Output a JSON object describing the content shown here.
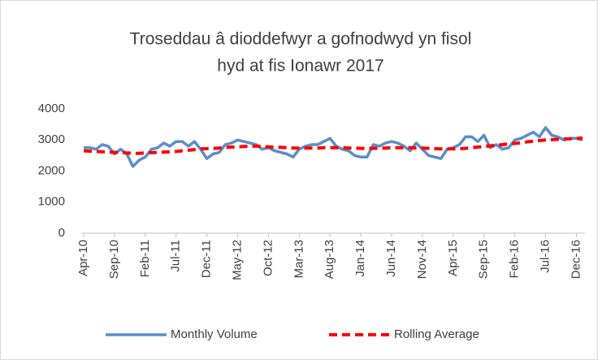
{
  "chart_data": {
    "type": "line",
    "title": [
      "Troseddau â dioddefwyr a gofnodwyd yn fisol",
      "hyd at fis Ionawr 2017"
    ],
    "categories": [
      "Apr-10",
      null,
      null,
      null,
      null,
      "Sep-10",
      null,
      null,
      null,
      null,
      "Feb-11",
      null,
      null,
      null,
      null,
      "Jul-11",
      null,
      null,
      null,
      null,
      "Dec-11",
      null,
      null,
      null,
      null,
      "May-12",
      null,
      null,
      null,
      null,
      "Oct-12",
      null,
      null,
      null,
      null,
      "Mar-13",
      null,
      null,
      null,
      null,
      "Aug-13",
      null,
      null,
      null,
      null,
      "Jan-14",
      null,
      null,
      null,
      null,
      "Jun-14",
      null,
      null,
      null,
      null,
      "Nov-14",
      null,
      null,
      null,
      null,
      "Apr-15",
      null,
      null,
      null,
      null,
      "Sep-15",
      null,
      null,
      null,
      null,
      "Feb-16",
      null,
      null,
      null,
      null,
      "Jul-16",
      null,
      null,
      null,
      null,
      "Dec-16",
      null
    ],
    "series": [
      {
        "name": "Monthly Volume",
        "color": "#5b8ec9",
        "dash": false,
        "values": [
          2750,
          2750,
          2700,
          2850,
          2800,
          2550,
          2700,
          2550,
          2150,
          2350,
          2450,
          2700,
          2750,
          2900,
          2800,
          2950,
          2950,
          2800,
          2950,
          2700,
          2400,
          2550,
          2600,
          2850,
          2900,
          3000,
          2950,
          2900,
          2850,
          2700,
          2750,
          2650,
          2600,
          2550,
          2450,
          2700,
          2800,
          2850,
          2850,
          2950,
          3050,
          2800,
          2700,
          2650,
          2500,
          2450,
          2450,
          2850,
          2800,
          2900,
          2950,
          2900,
          2800,
          2650,
          2900,
          2700,
          2500,
          2450,
          2400,
          2700,
          2750,
          2850,
          3100,
          3100,
          2950,
          3150,
          2750,
          2850,
          2700,
          2750,
          3000,
          3050,
          3150,
          3250,
          3100,
          3400,
          3150,
          3100,
          3000,
          3050,
          3050,
          3000
        ]
      },
      {
        "name": "Rolling Average",
        "color": "#ff0000",
        "dash": true,
        "values": [
          2650,
          2640,
          2630,
          2620,
          2610,
          2600,
          2590,
          2580,
          2570,
          2570,
          2580,
          2590,
          2600,
          2610,
          2620,
          2630,
          2650,
          2670,
          2690,
          2710,
          2720,
          2730,
          2740,
          2760,
          2770,
          2780,
          2790,
          2800,
          2800,
          2790,
          2780,
          2770,
          2760,
          2750,
          2740,
          2740,
          2740,
          2740,
          2740,
          2750,
          2750,
          2750,
          2750,
          2740,
          2740,
          2730,
          2730,
          2730,
          2740,
          2740,
          2750,
          2750,
          2750,
          2750,
          2740,
          2740,
          2730,
          2720,
          2710,
          2710,
          2710,
          2720,
          2730,
          2750,
          2770,
          2790,
          2810,
          2830,
          2850,
          2870,
          2890,
          2910,
          2940,
          2960,
          2980,
          3000,
          3010,
          3020,
          3030,
          3040,
          3050,
          3060
        ]
      }
    ],
    "ylim": [
      0,
      4000
    ],
    "yticks": [
      0,
      1000,
      2000,
      3000,
      4000
    ],
    "grid": false,
    "legend": "bottom"
  }
}
